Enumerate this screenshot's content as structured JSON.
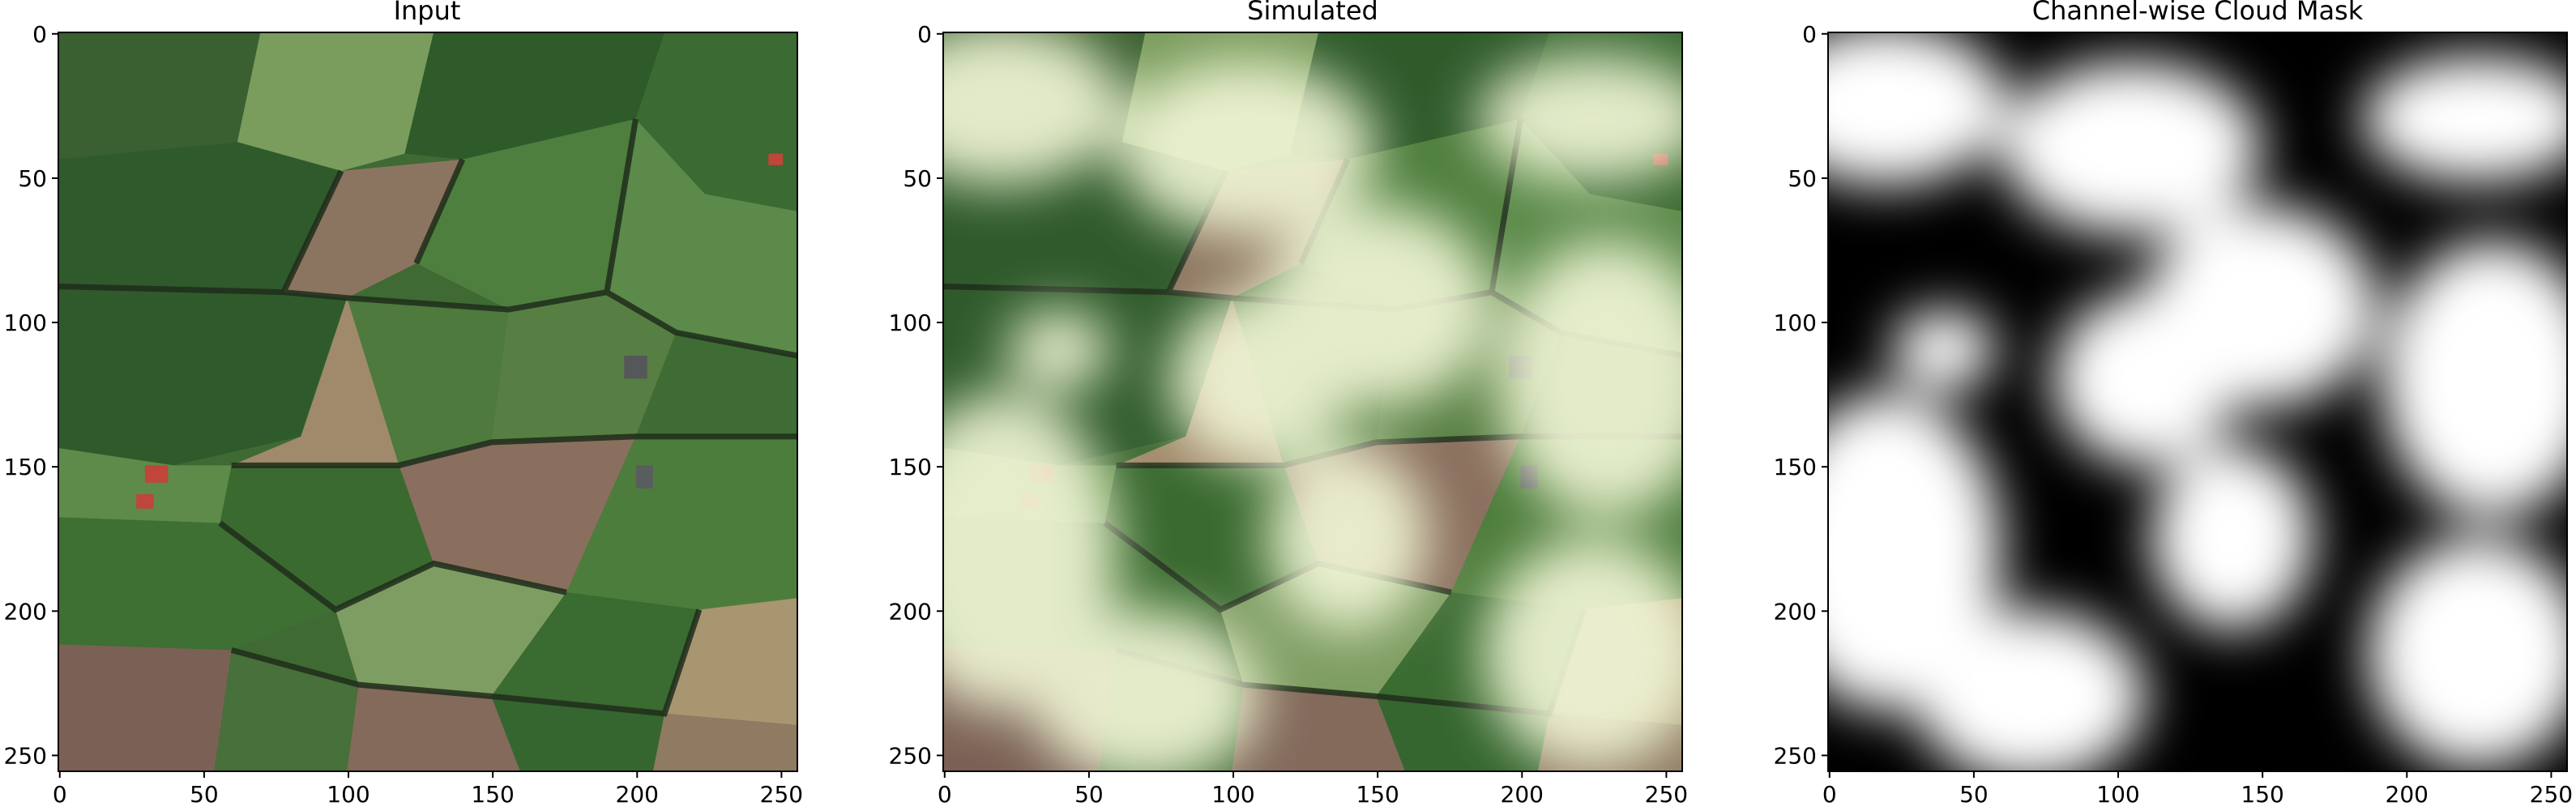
{
  "panels": [
    {
      "key": "input",
      "title": "Input",
      "image_desc": "Aerial satellite image of patchwork farm fields: green pastures, brown ploughed plots, hedgerows and a few red-roofed buildings",
      "xticks": [
        "0",
        "50",
        "100",
        "150",
        "200",
        "250"
      ],
      "yticks": [
        "0",
        "50",
        "100",
        "150",
        "200",
        "250"
      ]
    },
    {
      "key": "simulated",
      "title": "Simulated",
      "image_desc": "Same farmland image overlaid with simulated soft white and pale-yellow clouds",
      "xticks": [
        "0",
        "50",
        "100",
        "150",
        "200",
        "250"
      ],
      "yticks": [
        "0",
        "50",
        "100",
        "150",
        "200",
        "250"
      ]
    },
    {
      "key": "mask",
      "title": "Channel-wise Cloud Mask",
      "image_desc": "Grayscale cloud mask: white where clouds are dense, black where clear",
      "xticks": [
        "0",
        "50",
        "100",
        "150",
        "200",
        "250"
      ],
      "yticks": [
        "0",
        "50",
        "100",
        "150",
        "200",
        "250"
      ]
    }
  ],
  "colors": {
    "field_green_dark": "#2f5a2c",
    "field_green": "#4c7b3c",
    "field_green_light": "#7a9e5c",
    "field_brown": "#8d7660",
    "field_tan": "#a58f6f",
    "hedge": "#1f2d1b",
    "roof": "#c0453a",
    "cloud": "#f1f6d6",
    "mask_black": "#000000",
    "mask_white": "#ffffff"
  }
}
